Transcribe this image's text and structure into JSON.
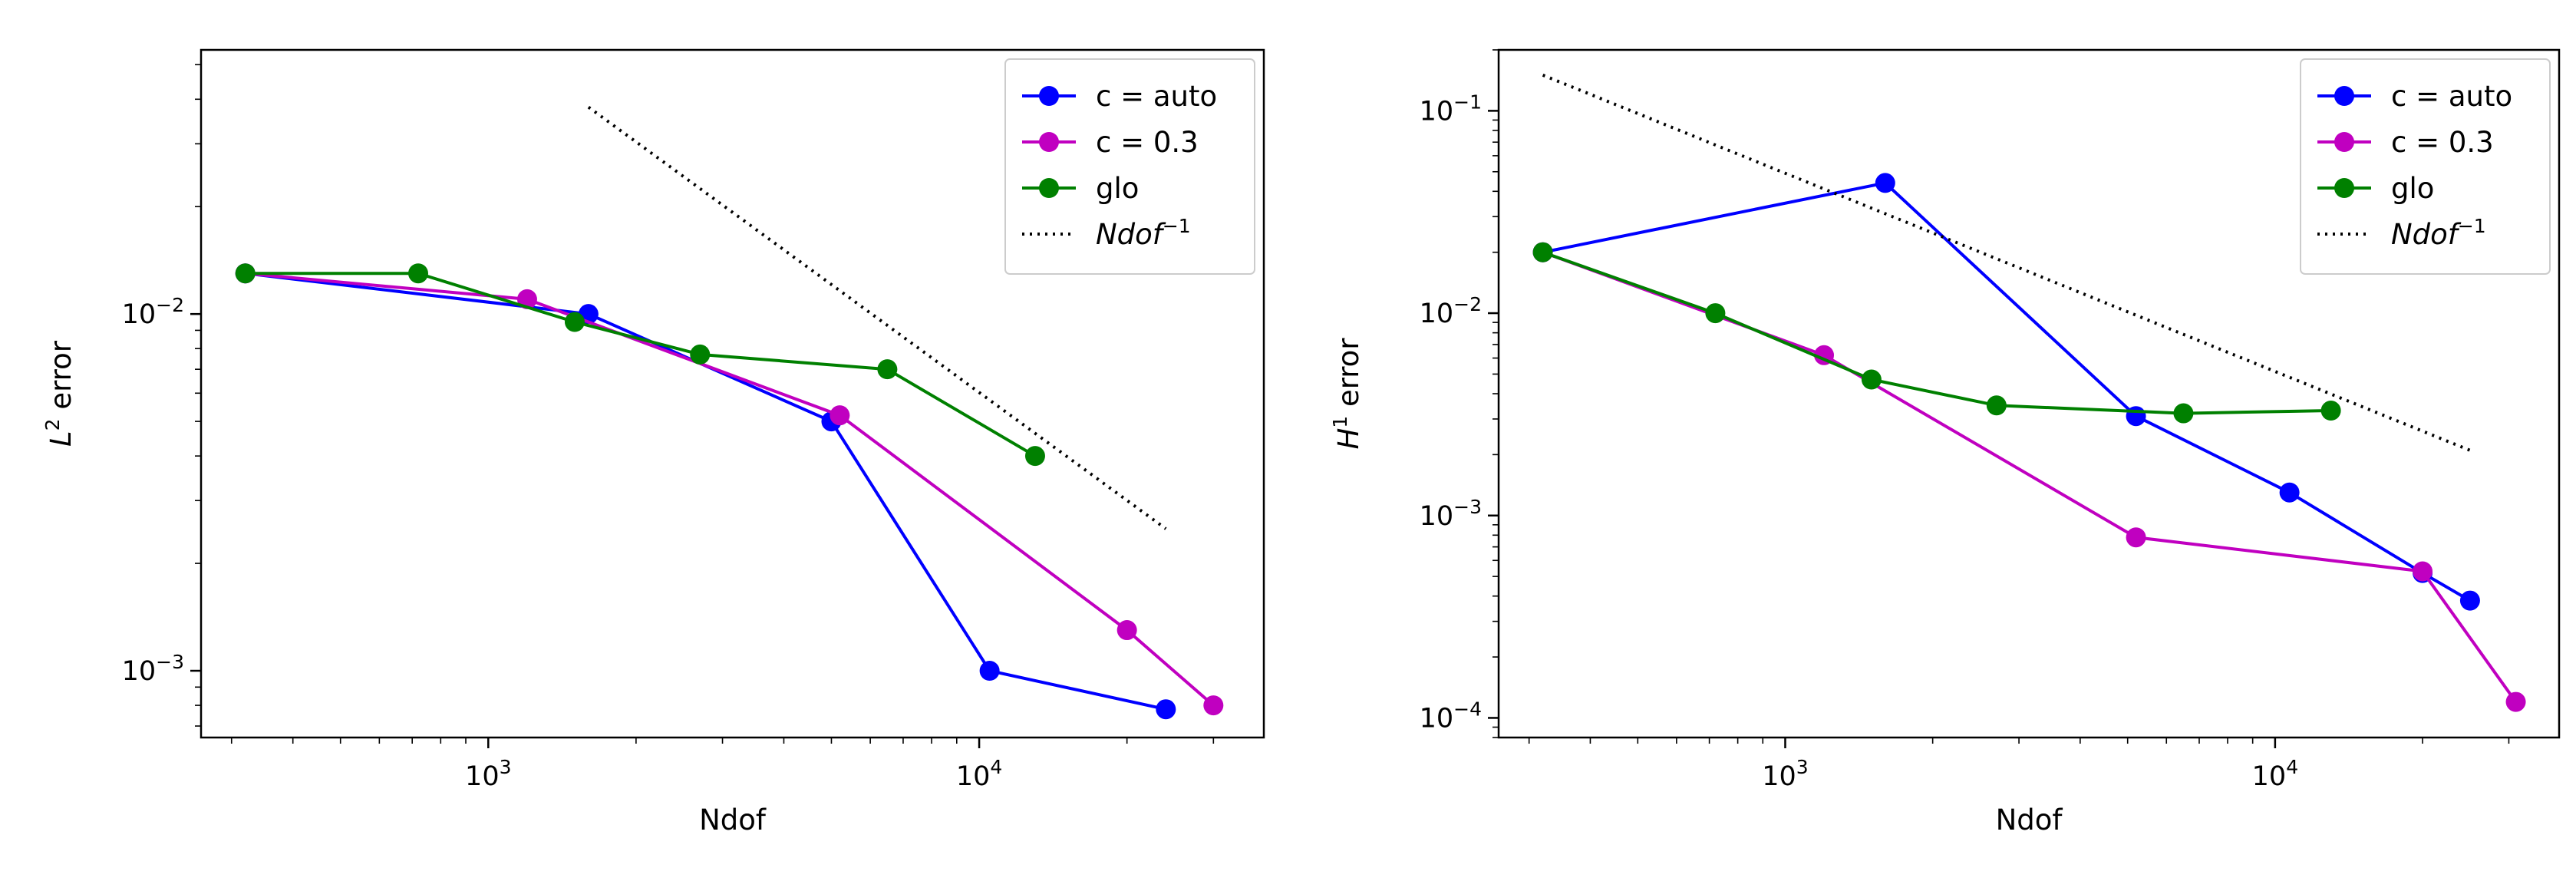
{
  "chart_data": [
    {
      "type": "line",
      "xscale": "log",
      "yscale": "log",
      "xlabel": "Ndof",
      "ylabel": "error",
      "ylabel_prefix": "L",
      "ylabel_sup": "2",
      "xlim": [
        260,
        38000
      ],
      "ylim": [
        0.00065,
        0.055
      ],
      "xticks": [
        {
          "value": 1000,
          "base": "10",
          "exp": "3"
        },
        {
          "value": 10000,
          "base": "10",
          "exp": "4"
        }
      ],
      "yticks": [
        {
          "value": 0.001,
          "base": "10",
          "exp": "−3"
        },
        {
          "value": 0.01,
          "base": "10",
          "exp": "−2"
        }
      ],
      "legend_position": "top-right",
      "series": [
        {
          "name": "c = auto",
          "color": "#0000ff",
          "style": "solid-marker",
          "x": [
            320,
            1600,
            5000,
            10500,
            24000
          ],
          "y": [
            0.013,
            0.01,
            0.005,
            0.001,
            0.00078
          ]
        },
        {
          "name": "c = 0.3",
          "color": "#c000c0",
          "style": "solid-marker",
          "x": [
            320,
            1200,
            5200,
            20000,
            30000
          ],
          "y": [
            0.013,
            0.011,
            0.0052,
            0.0013,
            0.0008
          ]
        },
        {
          "name": "glo",
          "color": "#008000",
          "style": "solid-marker",
          "x": [
            320,
            720,
            1500,
            2700,
            6500,
            13000
          ],
          "y": [
            0.013,
            0.013,
            0.0095,
            0.0077,
            0.007,
            0.004
          ]
        },
        {
          "name": "Ndof",
          "name_sup": "−1",
          "color": "#000000",
          "style": "dotted",
          "x": [
            1600,
            24000
          ],
          "y": [
            0.038,
            0.0025
          ]
        }
      ]
    },
    {
      "type": "line",
      "xscale": "log",
      "yscale": "log",
      "xlabel": "Ndof",
      "ylabel": "error",
      "ylabel_prefix": "H",
      "ylabel_sup": "1",
      "xlim": [
        260,
        38000
      ],
      "ylim": [
        8e-05,
        0.2
      ],
      "xticks": [
        {
          "value": 1000,
          "base": "10",
          "exp": "3"
        },
        {
          "value": 10000,
          "base": "10",
          "exp": "4"
        }
      ],
      "yticks": [
        {
          "value": 0.0001,
          "base": "10",
          "exp": "−4"
        },
        {
          "value": 0.001,
          "base": "10",
          "exp": "−3"
        },
        {
          "value": 0.01,
          "base": "10",
          "exp": "−2"
        },
        {
          "value": 0.1,
          "base": "10",
          "exp": "−1"
        }
      ],
      "legend_position": "top-right",
      "series": [
        {
          "name": "c = auto",
          "color": "#0000ff",
          "style": "solid-marker",
          "x": [
            320,
            1600,
            5200,
            10700,
            20000,
            25000
          ],
          "y": [
            0.02,
            0.044,
            0.0031,
            0.0013,
            0.00052,
            0.00038
          ]
        },
        {
          "name": "c = 0.3",
          "color": "#c000c0",
          "style": "solid-marker",
          "x": [
            320,
            1200,
            5200,
            20000,
            31000
          ],
          "y": [
            0.02,
            0.0062,
            0.00078,
            0.00053,
            0.00012
          ]
        },
        {
          "name": "glo",
          "color": "#008000",
          "style": "solid-marker",
          "x": [
            320,
            720,
            1500,
            2700,
            6500,
            13000
          ],
          "y": [
            0.02,
            0.01,
            0.0047,
            0.0035,
            0.0032,
            0.0033
          ]
        },
        {
          "name": "Ndof",
          "name_sup": "−1",
          "color": "#000000",
          "style": "dotted",
          "x": [
            320,
            25000
          ],
          "y": [
            0.15,
            0.0021
          ]
        }
      ]
    }
  ]
}
